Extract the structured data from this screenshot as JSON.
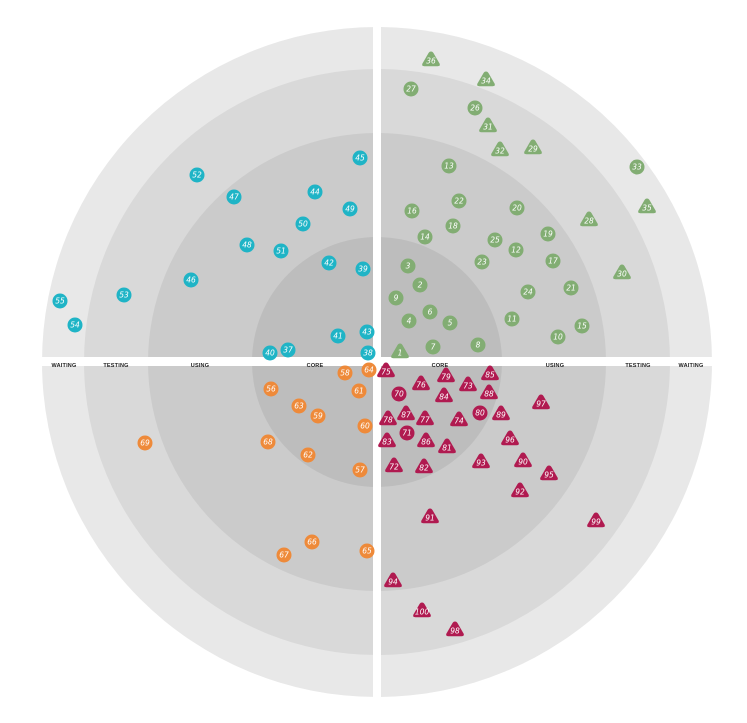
{
  "colors": {
    "ring_core": "#bdbdbd",
    "ring_using": "#cbcbcb",
    "ring_testing": "#d9d9d9",
    "ring_waiting": "#e8e8e8",
    "divider": "#ffffff",
    "quadrant_tr": "#82ad73",
    "quadrant_tl": "#1fb4c6",
    "quadrant_bl": "#ee8a3a",
    "quadrant_br": "#b01a50"
  },
  "rings": {
    "left": [
      "WAITING",
      "TESTING",
      "USING",
      "CORE"
    ],
    "right": [
      "CORE",
      "USING",
      "TESTING",
      "WAITING"
    ]
  },
  "blips": [
    {
      "n": "1",
      "shape": "triangle",
      "q": "tr"
    },
    {
      "n": "2",
      "shape": "circle",
      "q": "tr"
    },
    {
      "n": "3",
      "shape": "circle",
      "q": "tr"
    },
    {
      "n": "4",
      "shape": "circle",
      "q": "tr"
    },
    {
      "n": "5",
      "shape": "circle",
      "q": "tr"
    },
    {
      "n": "6",
      "shape": "circle",
      "q": "tr"
    },
    {
      "n": "7",
      "shape": "circle",
      "q": "tr"
    },
    {
      "n": "8",
      "shape": "circle",
      "q": "tr"
    },
    {
      "n": "9",
      "shape": "circle",
      "q": "tr"
    },
    {
      "n": "10",
      "shape": "circle",
      "q": "tr"
    },
    {
      "n": "11",
      "shape": "circle",
      "q": "tr"
    },
    {
      "n": "12",
      "shape": "circle",
      "q": "tr"
    },
    {
      "n": "13",
      "shape": "circle",
      "q": "tr"
    },
    {
      "n": "14",
      "shape": "circle",
      "q": "tr"
    },
    {
      "n": "15",
      "shape": "circle",
      "q": "tr"
    },
    {
      "n": "16",
      "shape": "circle",
      "q": "tr"
    },
    {
      "n": "17",
      "shape": "circle",
      "q": "tr"
    },
    {
      "n": "18",
      "shape": "circle",
      "q": "tr"
    },
    {
      "n": "19",
      "shape": "circle",
      "q": "tr"
    },
    {
      "n": "20",
      "shape": "circle",
      "q": "tr"
    },
    {
      "n": "21",
      "shape": "circle",
      "q": "tr"
    },
    {
      "n": "22",
      "shape": "circle",
      "q": "tr"
    },
    {
      "n": "23",
      "shape": "circle",
      "q": "tr"
    },
    {
      "n": "24",
      "shape": "circle",
      "q": "tr"
    },
    {
      "n": "25",
      "shape": "circle",
      "q": "tr"
    },
    {
      "n": "26",
      "shape": "circle",
      "q": "tr"
    },
    {
      "n": "27",
      "shape": "circle",
      "q": "tr"
    },
    {
      "n": "28",
      "shape": "triangle",
      "q": "tr"
    },
    {
      "n": "29",
      "shape": "triangle",
      "q": "tr"
    },
    {
      "n": "30",
      "shape": "triangle",
      "q": "tr"
    },
    {
      "n": "31",
      "shape": "triangle",
      "q": "tr"
    },
    {
      "n": "32",
      "shape": "triangle",
      "q": "tr"
    },
    {
      "n": "33",
      "shape": "circle",
      "q": "tr"
    },
    {
      "n": "34",
      "shape": "triangle",
      "q": "tr"
    },
    {
      "n": "35",
      "shape": "triangle",
      "q": "tr"
    },
    {
      "n": "36",
      "shape": "triangle",
      "q": "tr"
    },
    {
      "n": "37",
      "shape": "circle",
      "q": "tl"
    },
    {
      "n": "38",
      "shape": "circle",
      "q": "tl"
    },
    {
      "n": "39",
      "shape": "circle",
      "q": "tl"
    },
    {
      "n": "40",
      "shape": "circle",
      "q": "tl"
    },
    {
      "n": "41",
      "shape": "circle",
      "q": "tl"
    },
    {
      "n": "42",
      "shape": "circle",
      "q": "tl"
    },
    {
      "n": "43",
      "shape": "circle",
      "q": "tl"
    },
    {
      "n": "44",
      "shape": "circle",
      "q": "tl"
    },
    {
      "n": "45",
      "shape": "circle",
      "q": "tl"
    },
    {
      "n": "46",
      "shape": "circle",
      "q": "tl"
    },
    {
      "n": "47",
      "shape": "circle",
      "q": "tl"
    },
    {
      "n": "48",
      "shape": "circle",
      "q": "tl"
    },
    {
      "n": "49",
      "shape": "circle",
      "q": "tl"
    },
    {
      "n": "50",
      "shape": "circle",
      "q": "tl"
    },
    {
      "n": "51",
      "shape": "circle",
      "q": "tl"
    },
    {
      "n": "52",
      "shape": "circle",
      "q": "tl"
    },
    {
      "n": "53",
      "shape": "circle",
      "q": "tl"
    },
    {
      "n": "54",
      "shape": "circle",
      "q": "tl"
    },
    {
      "n": "55",
      "shape": "circle",
      "q": "tl"
    },
    {
      "n": "56",
      "shape": "circle",
      "q": "bl"
    },
    {
      "n": "57",
      "shape": "circle",
      "q": "bl"
    },
    {
      "n": "58",
      "shape": "circle",
      "q": "bl"
    },
    {
      "n": "59",
      "shape": "circle",
      "q": "bl"
    },
    {
      "n": "60",
      "shape": "circle",
      "q": "bl"
    },
    {
      "n": "61",
      "shape": "circle",
      "q": "bl"
    },
    {
      "n": "62",
      "shape": "circle",
      "q": "bl"
    },
    {
      "n": "63",
      "shape": "circle",
      "q": "bl"
    },
    {
      "n": "64",
      "shape": "circle",
      "q": "bl"
    },
    {
      "n": "65",
      "shape": "circle",
      "q": "bl"
    },
    {
      "n": "66",
      "shape": "circle",
      "q": "bl"
    },
    {
      "n": "67",
      "shape": "circle",
      "q": "bl"
    },
    {
      "n": "68",
      "shape": "circle",
      "q": "bl"
    },
    {
      "n": "69",
      "shape": "circle",
      "q": "bl"
    },
    {
      "n": "70",
      "shape": "circle",
      "q": "br"
    },
    {
      "n": "71",
      "shape": "circle",
      "q": "br"
    },
    {
      "n": "72",
      "shape": "triangle",
      "q": "br"
    },
    {
      "n": "73",
      "shape": "triangle",
      "q": "br"
    },
    {
      "n": "74",
      "shape": "triangle",
      "q": "br"
    },
    {
      "n": "75",
      "shape": "triangle",
      "q": "br"
    },
    {
      "n": "76",
      "shape": "triangle",
      "q": "br"
    },
    {
      "n": "77",
      "shape": "triangle",
      "q": "br"
    },
    {
      "n": "78",
      "shape": "triangle",
      "q": "br"
    },
    {
      "n": "79",
      "shape": "triangle",
      "q": "br"
    },
    {
      "n": "80",
      "shape": "circle",
      "q": "br"
    },
    {
      "n": "81",
      "shape": "triangle",
      "q": "br"
    },
    {
      "n": "82",
      "shape": "triangle",
      "q": "br"
    },
    {
      "n": "83",
      "shape": "triangle",
      "q": "br"
    },
    {
      "n": "84",
      "shape": "triangle",
      "q": "br"
    },
    {
      "n": "85",
      "shape": "triangle",
      "q": "br"
    },
    {
      "n": "86",
      "shape": "triangle",
      "q": "br"
    },
    {
      "n": "87",
      "shape": "triangle",
      "q": "br"
    },
    {
      "n": "88",
      "shape": "triangle",
      "q": "br"
    },
    {
      "n": "89",
      "shape": "triangle",
      "q": "br"
    },
    {
      "n": "90",
      "shape": "triangle",
      "q": "br"
    },
    {
      "n": "91",
      "shape": "triangle",
      "q": "br"
    },
    {
      "n": "92",
      "shape": "triangle",
      "q": "br"
    },
    {
      "n": "93",
      "shape": "triangle",
      "q": "br"
    },
    {
      "n": "94",
      "shape": "triangle",
      "q": "br"
    },
    {
      "n": "95",
      "shape": "triangle",
      "q": "br"
    },
    {
      "n": "96",
      "shape": "triangle",
      "q": "br"
    },
    {
      "n": "97",
      "shape": "triangle",
      "q": "br"
    },
    {
      "n": "98",
      "shape": "triangle",
      "q": "br"
    },
    {
      "n": "99",
      "shape": "triangle",
      "q": "br"
    },
    {
      "n": "100",
      "shape": "triangle",
      "q": "br"
    }
  ]
}
